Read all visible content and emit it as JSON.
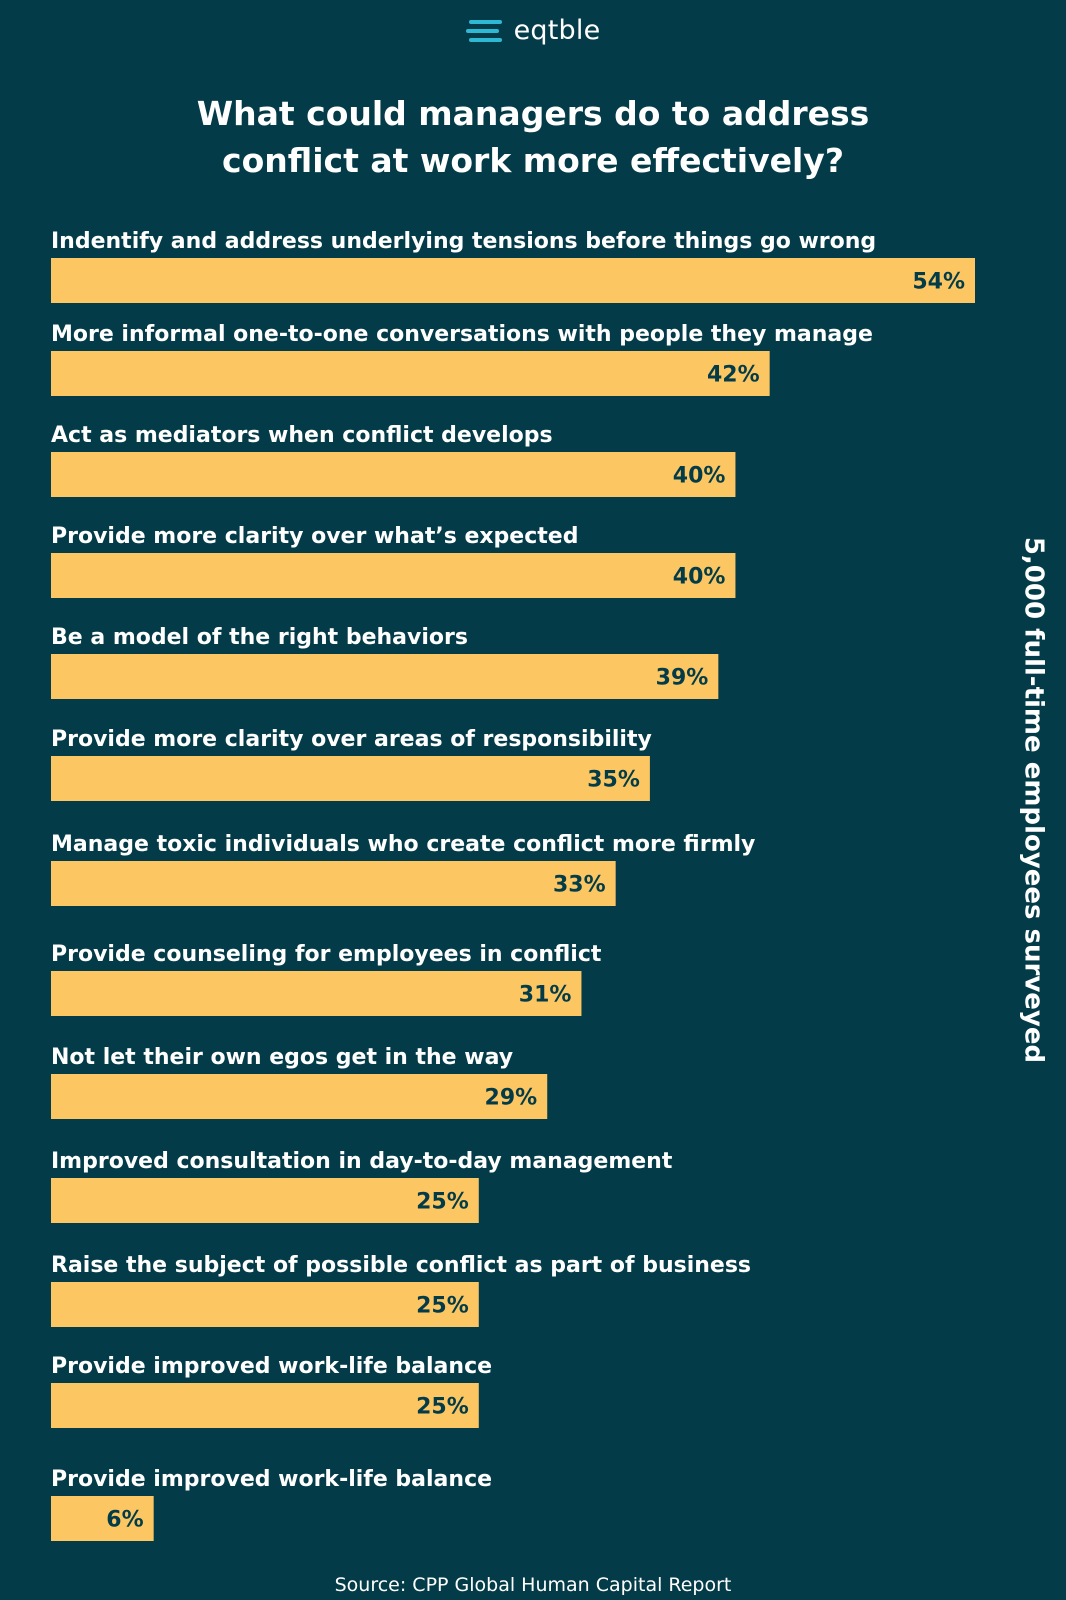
{
  "brand": {
    "logo_icon": "eqtble-logo-icon",
    "name": "eqtble"
  },
  "colors": {
    "background": "#033c48",
    "bar": "#fcc762",
    "value_text": "#033c48",
    "text": "#ffffff",
    "logo_accent": "#2fb8d4"
  },
  "chart_data": {
    "type": "bar",
    "orientation": "horizontal",
    "title": "What could managers do to address conflict at work more effectively?",
    "title_lines": [
      "What could managers do to address",
      "conflict at work more effectively?"
    ],
    "xlabel": "",
    "ylabel": "",
    "xlim": [
      0,
      54
    ],
    "grid": false,
    "categories": [
      "Indentify and address underlying tensions before things go wrong",
      "More informal one-to-one conversations with people they manage",
      "Act as mediators when conflict develops",
      "Provide more clarity over what’s expected",
      "Be a model of the right behaviors",
      "Provide more clarity over areas of responsibility",
      "Manage toxic individuals who create conflict more firmly",
      "Provide counseling for employees in conflict",
      "Not let their own egos get in the way",
      "Improved consultation in day-to-day management",
      "Raise the subject of possible conflict as part of business",
      "Provide improved work-life balance",
      "Provide improved work-life balance"
    ],
    "values": [
      54,
      42,
      40,
      40,
      39,
      35,
      33,
      31,
      29,
      25,
      25,
      25,
      6
    ],
    "value_labels": [
      "54%",
      "42%",
      "40%",
      "40%",
      "39%",
      "35%",
      "33%",
      "31%",
      "29%",
      "25%",
      "25%",
      "25%",
      "6%"
    ],
    "unit": "%",
    "side_label": "5,000 full-time employees surveyed",
    "source": "Source: CPP Global Human Capital Report"
  }
}
